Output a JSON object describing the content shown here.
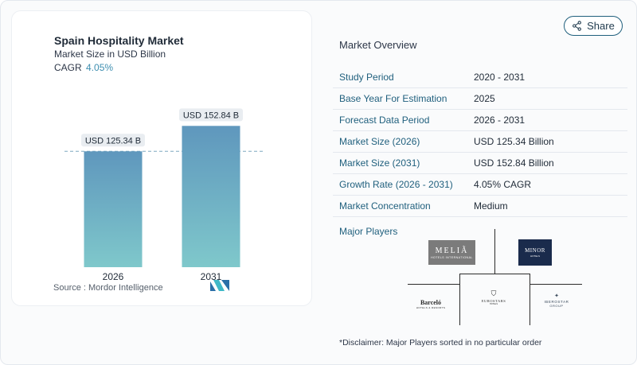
{
  "chart": {
    "title": "Spain Hospitality Market",
    "subtitle": "Market Size in USD Billion",
    "cagr_label": "CAGR",
    "cagr_value": "4.05%",
    "source": "Source :  Mordor Intelligence",
    "bar_color_top": "#5f97bd",
    "bar_color_bottom": "#7fc8cb",
    "accent": "#3d8eb0"
  },
  "chart_data": {
    "type": "bar",
    "categories": [
      "2026",
      "2031"
    ],
    "values": [
      125.34,
      152.84
    ],
    "data_labels": [
      "USD 125.34 B",
      "USD 152.84 B"
    ],
    "title": "Spain Hospitality Market",
    "subtitle": "Market Size in USD Billion",
    "xlabel": "",
    "ylabel": "",
    "ylim": [
      0,
      160
    ],
    "grid": false,
    "reference_line": 125.34
  },
  "share": {
    "label": "Share",
    "icon": "share-icon"
  },
  "overview": {
    "title": "Market Overview",
    "rows": [
      {
        "label": "Study Period",
        "value": "2020 - 2031"
      },
      {
        "label": "Base Year For Estimation",
        "value": "2025"
      },
      {
        "label": "Forecast Data Period",
        "value": "2026 - 2031"
      },
      {
        "label": "Market Size (2026)",
        "value": "USD 125.34 Billion"
      },
      {
        "label": "Market Size (2031)",
        "value": "USD 152.84 Billion"
      },
      {
        "label": "Growth Rate (2026 - 2031)",
        "value": "4.05% CAGR"
      },
      {
        "label": "Market Concentration",
        "value": "Medium"
      }
    ]
  },
  "players": {
    "title": "Major Players",
    "logos": {
      "melia": {
        "main": "MELIÃ",
        "sub": "HOTELS INTERNATIONAL"
      },
      "minor": {
        "main": "MINOR",
        "sub": "HOTELS"
      },
      "barcelo": {
        "main": "Barceló",
        "sub": "HOTELS & RESORTS"
      },
      "eurostars": {
        "main": "EUROSTARS",
        "sub": "HOTELS"
      },
      "iberostar": {
        "main": "IBEROSTAR",
        "sub": "GROUP"
      }
    }
  },
  "disclaimer": "*Disclaimer: Major Players sorted in no particular order"
}
